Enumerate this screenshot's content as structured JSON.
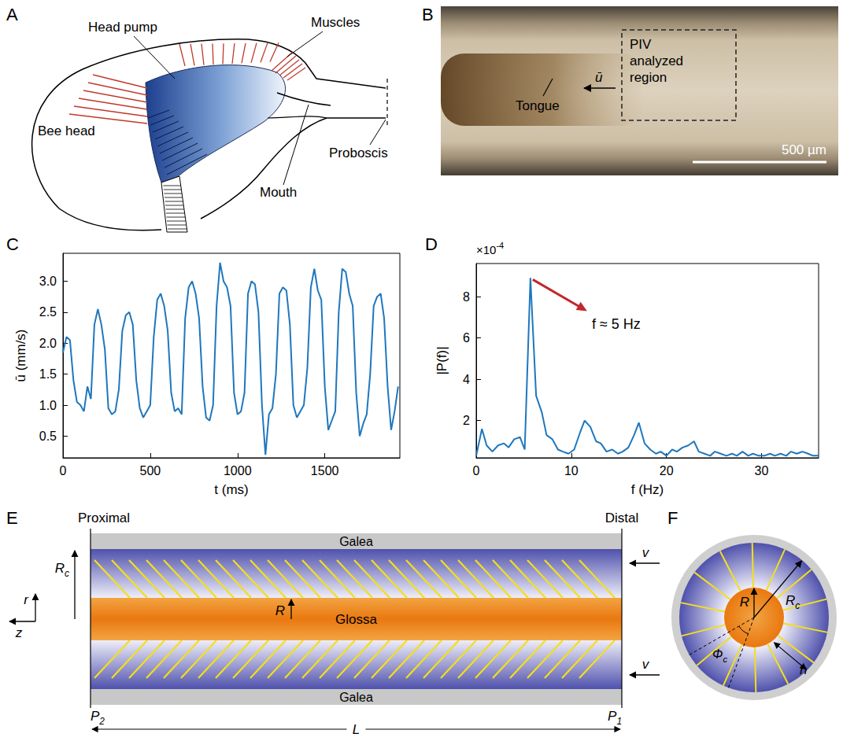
{
  "panels": {
    "A": {
      "letter": "A",
      "bee_head": "Bee head",
      "head_pump": "Head pump",
      "muscles": "Muscles",
      "mouth": "Mouth",
      "proboscis": "Proboscis"
    },
    "B": {
      "letter": "B",
      "tongue": "Tongue",
      "flow": "ū",
      "region": "PIV analyzed region",
      "scale_bar": "500 µm"
    },
    "E": {
      "letter": "E",
      "proximal": "Proximal",
      "distal": "Distal",
      "galea": "Galea",
      "glossa": "Glossa",
      "Rc": {
        "text": "R",
        "sub": "c"
      },
      "R": "R",
      "r": "r",
      "z": "z",
      "v": "v",
      "P2": {
        "text": "P",
        "sub": "2"
      },
      "P1": {
        "text": "P",
        "sub": "1"
      },
      "L": "L"
    },
    "F": {
      "letter": "F",
      "R": "R",
      "Rc": {
        "text": "R",
        "sub": "c"
      },
      "h": "h",
      "phi_c": {
        "text": "Φ",
        "sub": "c"
      }
    }
  },
  "chart_data": [
    {
      "panel": "C",
      "type": "line",
      "color": "#1f77bd",
      "grid": false,
      "x_label": "t (ms)",
      "y_label": "ū (mm/s)",
      "x": [
        0,
        20,
        40,
        60,
        80,
        100,
        120,
        140,
        160,
        180,
        200,
        220,
        240,
        260,
        280,
        300,
        320,
        340,
        360,
        380,
        400,
        420,
        440,
        460,
        480,
        500,
        520,
        540,
        560,
        580,
        600,
        620,
        640,
        660,
        680,
        700,
        720,
        740,
        760,
        780,
        800,
        820,
        840,
        860,
        880,
        900,
        920,
        940,
        960,
        980,
        1000,
        1020,
        1040,
        1060,
        1080,
        1100,
        1120,
        1140,
        1160,
        1180,
        1200,
        1220,
        1240,
        1260,
        1280,
        1300,
        1320,
        1340,
        1360,
        1380,
        1400,
        1420,
        1440,
        1460,
        1480,
        1500,
        1520,
        1540,
        1560,
        1580,
        1600,
        1620,
        1640,
        1660,
        1680,
        1700,
        1720,
        1740,
        1760,
        1780,
        1800,
        1820,
        1840,
        1860,
        1880,
        1900,
        1920
      ],
      "values": [
        1.85,
        2.1,
        2.05,
        1.4,
        1.05,
        1.0,
        0.9,
        1.3,
        1.1,
        2.3,
        2.55,
        2.3,
        1.9,
        0.95,
        0.85,
        0.9,
        1.25,
        2.2,
        2.45,
        2.5,
        2.3,
        1.4,
        0.95,
        0.8,
        0.9,
        1.0,
        2.1,
        2.7,
        2.8,
        2.6,
        2.2,
        1.2,
        0.9,
        0.95,
        0.85,
        2.4,
        2.9,
        3.0,
        2.8,
        2.4,
        1.3,
        0.8,
        0.75,
        1.0,
        2.6,
        3.3,
        3.0,
        2.9,
        2.6,
        1.2,
        0.85,
        0.9,
        1.2,
        2.8,
        3.0,
        2.95,
        2.5,
        1.0,
        0.2,
        0.85,
        0.95,
        1.5,
        2.8,
        2.9,
        2.85,
        2.3,
        1.0,
        0.8,
        0.9,
        1.0,
        1.6,
        2.9,
        3.2,
        2.85,
        2.7,
        1.3,
        0.6,
        0.75,
        0.9,
        2.5,
        3.2,
        3.15,
        2.8,
        2.6,
        1.2,
        0.5,
        0.7,
        0.85,
        1.5,
        2.6,
        2.75,
        2.8,
        2.4,
        1.3,
        0.6,
        0.9,
        1.3
      ],
      "xlim": [
        0,
        1930
      ],
      "xticks": [
        0,
        500,
        1000,
        1500
      ],
      "ylim": [
        0.15,
        3.45
      ],
      "yticks": [
        0.5,
        {
          "value": 1,
          "label": "1.0"
        },
        1.5,
        {
          "value": 2,
          "label": "2.0"
        },
        2.5,
        {
          "value": 3,
          "label": "3.0"
        }
      ]
    },
    {
      "panel": "D",
      "type": "line",
      "color": "#1f77bd",
      "grid": false,
      "x_label": "f (Hz)",
      "y_label": "|P(f)|",
      "y_multiplier": {
        "base": "×10",
        "exponent": "-4"
      },
      "annotation": "f ≈ 5 Hz",
      "x": [
        0,
        0.6,
        1.1,
        1.7,
        2.3,
        2.9,
        3.4,
        4.0,
        4.6,
        5.1,
        5.7,
        6.3,
        6.9,
        7.4,
        8.0,
        8.6,
        9.1,
        9.7,
        10.3,
        10.9,
        11.4,
        12.0,
        12.6,
        13.1,
        13.7,
        14.3,
        14.9,
        15.4,
        16.0,
        16.6,
        17.1,
        17.7,
        18.3,
        18.9,
        19.4,
        20.0,
        20.6,
        21.1,
        21.7,
        22.3,
        22.9,
        23.4,
        24.0,
        24.6,
        25.1,
        25.7,
        26.3,
        26.9,
        27.4,
        28.0,
        28.6,
        29.1,
        29.7,
        30.3,
        30.9,
        31.4,
        32.0,
        32.6,
        33.1,
        33.7,
        34.3,
        34.9,
        35.4,
        36.0
      ],
      "values": [
        0.3,
        1.6,
        0.8,
        0.5,
        0.8,
        0.9,
        0.7,
        1.1,
        1.2,
        0.6,
        8.9,
        3.2,
        2.4,
        1.3,
        1.1,
        0.6,
        0.5,
        0.4,
        0.6,
        1.4,
        2.0,
        1.7,
        1.0,
        0.9,
        0.5,
        0.6,
        0.4,
        0.5,
        0.7,
        1.3,
        1.9,
        0.9,
        0.6,
        0.4,
        0.5,
        0.3,
        0.6,
        0.5,
        0.7,
        0.8,
        1.0,
        0.5,
        0.4,
        0.3,
        0.5,
        0.4,
        0.3,
        0.4,
        0.3,
        0.5,
        0.3,
        0.4,
        0.3,
        0.3,
        0.4,
        0.3,
        0.4,
        0.3,
        0.5,
        0.4,
        0.5,
        0.4,
        0.3,
        0.3
      ],
      "xlim": [
        0,
        36
      ],
      "xticks": [
        0,
        10,
        20,
        30
      ],
      "ylim": [
        0.2,
        9.6
      ],
      "yticks": [
        2,
        4,
        6,
        8
      ]
    }
  ]
}
